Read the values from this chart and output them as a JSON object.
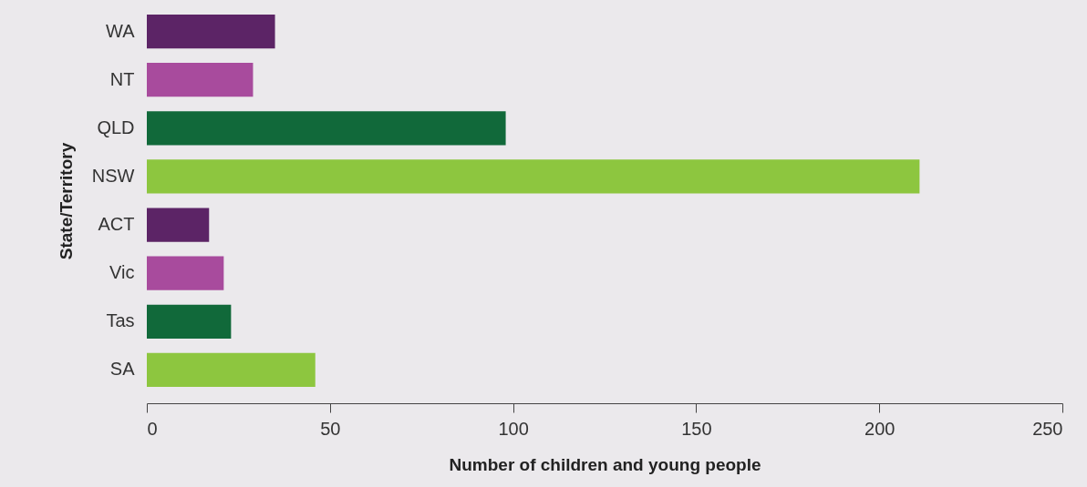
{
  "chart_data": {
    "type": "bar",
    "orientation": "horizontal",
    "categories": [
      "WA",
      "NT",
      "QLD",
      "NSW",
      "ACT",
      "Vic",
      "Tas",
      "SA"
    ],
    "values": [
      35,
      29,
      98,
      211,
      17,
      21,
      23,
      46
    ],
    "colors": [
      "#5c2466",
      "#a84b9d",
      "#11693a",
      "#8dc63f",
      "#5c2466",
      "#a84b9d",
      "#11693a",
      "#8dc63f"
    ],
    "xlabel": "Number of children and young people",
    "ylabel": "State/Territory",
    "xlim": [
      0,
      250
    ],
    "xticks": [
      0,
      50,
      100,
      150,
      200,
      250
    ],
    "grid": false
  }
}
